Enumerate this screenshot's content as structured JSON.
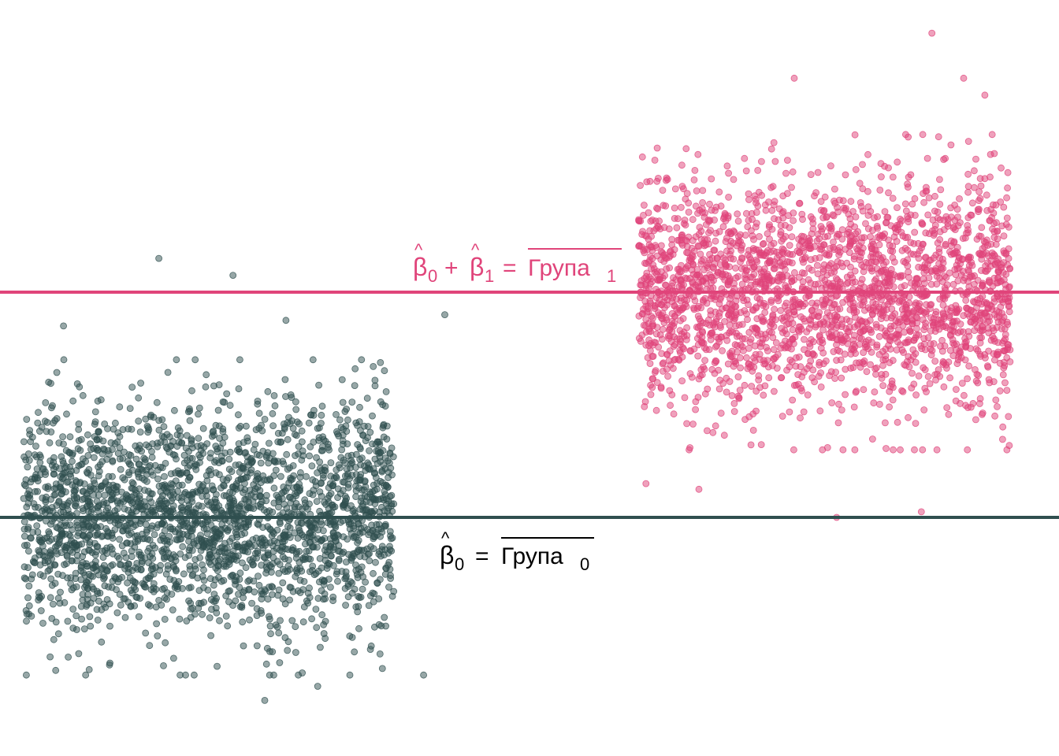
{
  "chart_data": {
    "type": "scatter",
    "title": "",
    "xlabel": "",
    "ylabel": "",
    "grid": false,
    "legend": "none",
    "ylim": [
      -3.4,
      10.0
    ],
    "series": [
      {
        "group": 0,
        "color": "#2F4F4F",
        "mean": 0.0,
        "sd": 1.0,
        "n": 2500,
        "outliers": [
          {
            "x": 0.15,
            "y": 4.6
          },
          {
            "x": 0.22,
            "y": 4.3
          },
          {
            "x": 0.27,
            "y": 3.5
          },
          {
            "x": 0.06,
            "y": 3.4
          },
          {
            "x": 0.42,
            "y": 3.6
          },
          {
            "x": 0.3,
            "y": -3.0
          },
          {
            "x": 0.25,
            "y": -3.25
          },
          {
            "x": 0.4,
            "y": -2.8
          }
        ]
      },
      {
        "group": 1,
        "color": "#E0447A",
        "mean": 4.0,
        "sd": 1.0,
        "n": 2500,
        "outliers": [
          {
            "x": 0.88,
            "y": 8.6
          },
          {
            "x": 0.75,
            "y": 7.8
          },
          {
            "x": 0.91,
            "y": 7.8
          },
          {
            "x": 0.93,
            "y": 7.5
          },
          {
            "x": 0.61,
            "y": 0.6
          },
          {
            "x": 0.66,
            "y": 0.5
          },
          {
            "x": 0.79,
            "y": 0.0
          },
          {
            "x": 0.87,
            "y": 0.1
          }
        ]
      }
    ],
    "hlines": [
      {
        "y": 4.0,
        "color": "#E0447A",
        "label": "β̂₀ + β̂₁ = Група₁"
      },
      {
        "y": 0.0,
        "color": "#2F4F4F",
        "label": "β̂₀ = Група₀"
      }
    ]
  },
  "annotations": {
    "group1": {
      "beta_symbol": "β",
      "sub0": "0",
      "plus": "+",
      "sub1": "1",
      "equals": "=",
      "group_word": "Група",
      "group_sub": "1",
      "color": "#E0447A"
    },
    "group0": {
      "beta_symbol": "β",
      "sub0": "0",
      "equals": "=",
      "group_word": "Група",
      "group_sub": "0",
      "color": "#000000"
    }
  }
}
